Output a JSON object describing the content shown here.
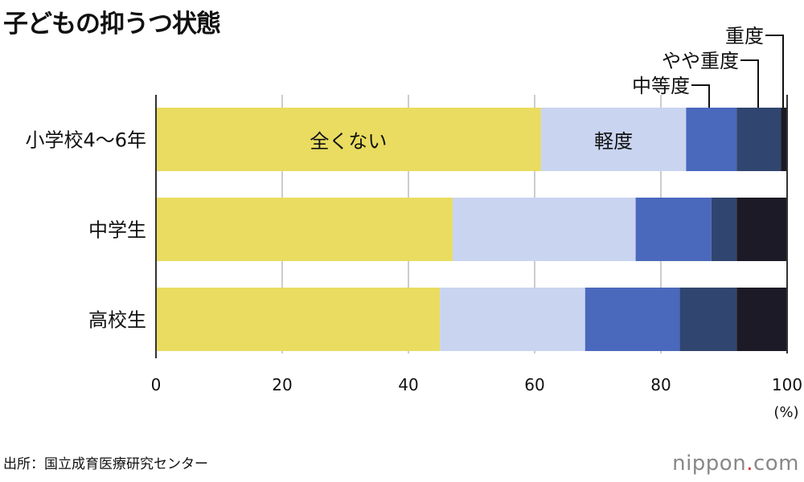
{
  "chart_data": {
    "type": "bar",
    "orientation": "horizontal",
    "stacked": true,
    "title": "子どもの抑うつ状態",
    "categories": [
      "小学校4〜6年",
      "中学生",
      "高校生"
    ],
    "series": [
      {
        "name": "全くない",
        "color": "#e9dc60",
        "values": [
          61,
          47,
          45
        ]
      },
      {
        "name": "軽度",
        "color": "#c9d4f0",
        "values": [
          23,
          29,
          23
        ]
      },
      {
        "name": "中等度",
        "color": "#4a68bc",
        "values": [
          8,
          12,
          15
        ]
      },
      {
        "name": "やや重度",
        "color": "#304670",
        "values": [
          7,
          4,
          9
        ]
      },
      {
        "name": "重度",
        "color": "#1c1a26",
        "values": [
          1,
          8,
          8
        ]
      }
    ],
    "xlim": [
      0,
      100
    ],
    "xticks": [
      "0",
      "20",
      "40",
      "60",
      "80",
      "100"
    ],
    "xunit": "(%)",
    "grid": true
  },
  "source": "出所：国立成育医療研究センター",
  "logo": {
    "main": "nippon",
    "dot": ".",
    "tld": "com"
  }
}
